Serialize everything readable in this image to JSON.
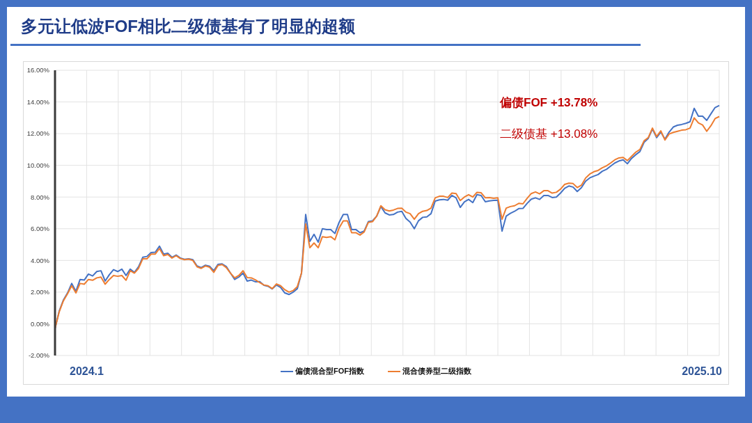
{
  "chart_data": {
    "type": "line",
    "title": "多元让低波FOF相比二级债基有了明显的超额",
    "categories": [
      null,
      null,
      null,
      null,
      null,
      null,
      null,
      null,
      null,
      null,
      null,
      null,
      null,
      null,
      null,
      null,
      null,
      null,
      null,
      null,
      null,
      null,
      null,
      null,
      null,
      null,
      null,
      null,
      null,
      null,
      null,
      null,
      null,
      null,
      null,
      null,
      null,
      null,
      null,
      null,
      null,
      null,
      null,
      null,
      null,
      null,
      null,
      null,
      null,
      null,
      null,
      null,
      null,
      null,
      null,
      null,
      null,
      null,
      null,
      null,
      null,
      null,
      null,
      null,
      null,
      null,
      null,
      null,
      null,
      null,
      null,
      null,
      null,
      null,
      null,
      null,
      null,
      null,
      null,
      null,
      null,
      null,
      null,
      null,
      null,
      null,
      null,
      null,
      null,
      null,
      null,
      null,
      null,
      null,
      null,
      null,
      null,
      null,
      null,
      null,
      null,
      null,
      null,
      null,
      null,
      null,
      null,
      null,
      null,
      null,
      null,
      null,
      null,
      null,
      null,
      null,
      null,
      null,
      null,
      null,
      null,
      null,
      null,
      null,
      null,
      null,
      null,
      null,
      null,
      null,
      null,
      null,
      null,
      null,
      null,
      null,
      null,
      null,
      null,
      null,
      null,
      null,
      null,
      null,
      null,
      null,
      null,
      null,
      null,
      null,
      null,
      null,
      null,
      null,
      null,
      null,
      null,
      null,
      null,
      null
    ],
    "series": [
      {
        "name": "偏债混合型FOF指数",
        "color": "#4472c4",
        "values": [
          -0.3,
          0.8,
          1.5,
          1.95,
          2.55,
          2.05,
          2.8,
          2.76,
          3.14,
          3.02,
          3.3,
          3.35,
          2.7,
          3.1,
          3.42,
          3.3,
          3.45,
          3.05,
          3.45,
          3.24,
          3.6,
          4.2,
          4.25,
          4.5,
          4.52,
          4.9,
          4.4,
          4.45,
          4.2,
          4.34,
          4.15,
          4.07,
          4.1,
          4.05,
          3.65,
          3.55,
          3.7,
          3.63,
          3.35,
          3.75,
          3.78,
          3.62,
          3.2,
          2.8,
          2.95,
          3.2,
          2.7,
          2.76,
          2.65,
          2.66,
          2.43,
          2.37,
          2.2,
          2.45,
          2.3,
          1.95,
          1.85,
          2.0,
          2.22,
          3.2,
          6.9,
          5.2,
          5.65,
          5.15,
          6.0,
          5.95,
          5.95,
          5.7,
          6.4,
          6.9,
          6.9,
          5.95,
          5.95,
          5.75,
          5.85,
          6.45,
          6.5,
          6.8,
          7.4,
          7.0,
          6.87,
          6.9,
          7.05,
          7.1,
          6.65,
          6.42,
          6.0,
          6.5,
          6.72,
          6.75,
          6.95,
          7.75,
          7.82,
          7.85,
          7.8,
          8.1,
          7.95,
          7.35,
          7.7,
          7.85,
          7.65,
          8.15,
          8.1,
          7.7,
          7.76,
          7.79,
          7.8,
          5.85,
          6.8,
          6.97,
          7.1,
          7.27,
          7.28,
          7.6,
          7.87,
          7.95,
          7.85,
          8.1,
          8.1,
          7.97,
          8.0,
          8.25,
          8.55,
          8.7,
          8.63,
          8.35,
          8.59,
          9.0,
          9.21,
          9.32,
          9.42,
          9.63,
          9.75,
          9.95,
          10.15,
          10.28,
          10.35,
          10.1,
          10.44,
          10.67,
          10.87,
          11.45,
          11.7,
          12.3,
          11.75,
          12.1,
          11.65,
          12.1,
          12.42,
          12.53,
          12.58,
          12.65,
          12.75,
          13.6,
          13.1,
          13.1,
          12.84,
          13.25,
          13.65,
          13.78
        ]
      },
      {
        "name": "混合债券型二级指数",
        "color": "#ed7d31",
        "values": [
          -0.3,
          0.75,
          1.45,
          1.9,
          2.4,
          1.95,
          2.55,
          2.5,
          2.8,
          2.75,
          2.9,
          2.95,
          2.5,
          2.8,
          3.05,
          3.0,
          3.05,
          2.75,
          3.35,
          3.2,
          3.5,
          4.1,
          4.1,
          4.4,
          4.4,
          4.75,
          4.3,
          4.38,
          4.15,
          4.3,
          4.12,
          4.05,
          4.08,
          4.0,
          3.6,
          3.5,
          3.65,
          3.57,
          3.25,
          3.68,
          3.74,
          3.55,
          3.2,
          2.9,
          3.05,
          3.35,
          2.92,
          2.9,
          2.77,
          2.6,
          2.45,
          2.4,
          2.22,
          2.52,
          2.4,
          2.15,
          2.0,
          2.1,
          2.35,
          3.2,
          6.3,
          4.8,
          5.1,
          4.8,
          5.5,
          5.45,
          5.5,
          5.3,
          6.05,
          6.5,
          6.5,
          5.75,
          5.75,
          5.6,
          5.8,
          6.4,
          6.45,
          6.8,
          7.45,
          7.2,
          7.12,
          7.18,
          7.28,
          7.3,
          7.05,
          6.95,
          6.6,
          6.95,
          7.1,
          7.15,
          7.3,
          7.95,
          8.05,
          8.05,
          7.97,
          8.25,
          8.22,
          7.78,
          8.0,
          8.15,
          8.0,
          8.3,
          8.27,
          7.95,
          7.97,
          7.92,
          7.95,
          6.6,
          7.3,
          7.4,
          7.45,
          7.6,
          7.57,
          7.92,
          8.22,
          8.32,
          8.2,
          8.4,
          8.4,
          8.25,
          8.3,
          8.5,
          8.8,
          8.88,
          8.85,
          8.6,
          8.75,
          9.2,
          9.45,
          9.6,
          9.68,
          9.85,
          9.97,
          10.15,
          10.35,
          10.47,
          10.5,
          10.3,
          10.57,
          10.83,
          11.0,
          11.55,
          11.75,
          12.35,
          11.82,
          12.18,
          11.6,
          11.98,
          12.08,
          12.15,
          12.22,
          12.25,
          12.35,
          13.0,
          12.68,
          12.55,
          12.15,
          12.5,
          12.95,
          13.08
        ]
      }
    ],
    "ylim": [
      -2,
      16
    ],
    "yticks": [
      {
        "value": -2,
        "label": "-2.00%"
      },
      {
        "value": 0,
        "label": "0.00%"
      },
      {
        "value": 2,
        "label": "2.00%"
      },
      {
        "value": 4,
        "label": "4.00%"
      },
      {
        "value": 6,
        "label": "6.00%"
      },
      {
        "value": 8,
        "label": "8.00%"
      },
      {
        "value": 10,
        "label": "10.00%"
      },
      {
        "value": 12,
        "label": "12.00%"
      },
      {
        "value": 14,
        "label": "14.00%"
      },
      {
        "value": 16,
        "label": "16.00%"
      }
    ],
    "grid": true,
    "legend": "bottom",
    "annotations": [
      "偏债FOF +13.78%",
      "二级债基 +13.08%",
      "2024.1",
      "2025.10"
    ]
  }
}
